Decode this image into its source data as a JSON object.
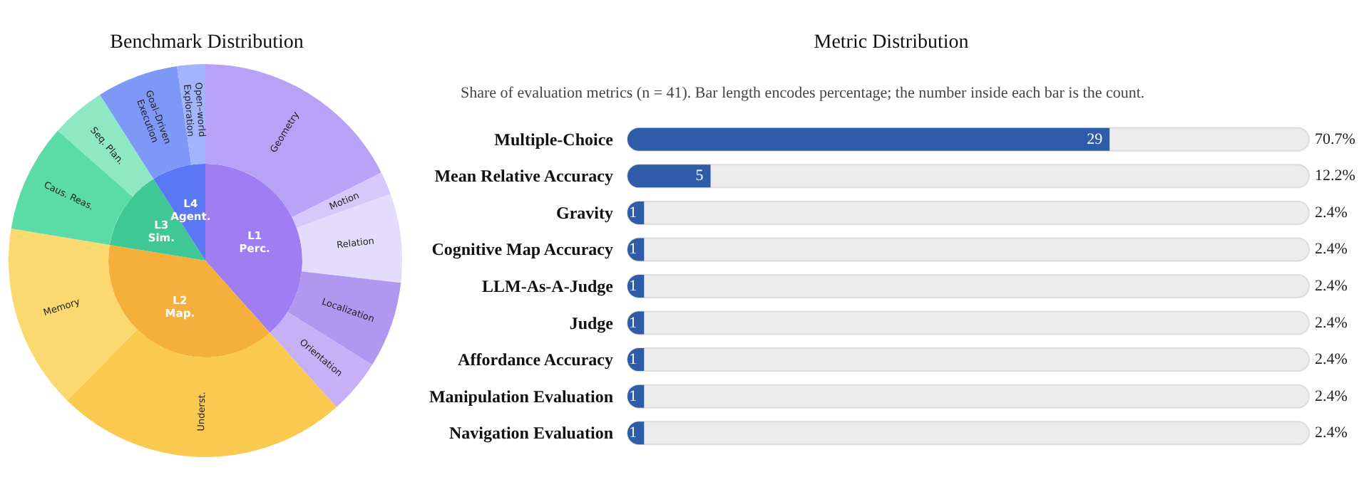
{
  "chart_data": [
    {
      "type": "pie",
      "title": "Benchmark Distribution",
      "categories": [
        "L1\nPerc.",
        "L2\nMap.",
        "L3\nSim.",
        "L4\nAgent."
      ],
      "values": [
        38.4,
        39.2,
        13.4,
        9.0
      ],
      "colors": [
        "#a07ef2",
        "#f5b03c",
        "#3fc795",
        "#5a78f5"
      ]
    },
    {
      "type": "donut",
      "categories": [
        "Geometry",
        "Motion",
        "Relation",
        "Localization",
        "Orientation",
        "Underst.",
        "Memory",
        "Caus. Reas.",
        "Seq. Plan.",
        "Goal–Driven\nExecution",
        "Open–world\nExploration"
      ],
      "values": [
        17.6,
        1.9,
        7.3,
        7.1,
        4.5,
        24.0,
        15.2,
        8.9,
        4.5,
        6.7,
        2.3
      ],
      "colors": [
        "#b8a2f8",
        "#d5c8fb",
        "#e4dcfc",
        "#b197ef",
        "#c6b0f6",
        "#fac94f",
        "#fbd870",
        "#5adba8",
        "#8ee8c4",
        "#7e98f7",
        "#a2b4fb"
      ]
    },
    {
      "type": "bar",
      "orientation": "horizontal",
      "title": "Metric Distribution",
      "subtitle": "Share of evaluation metrics (n = 41). Bar length encodes percentage; the number inside each bar is the count.",
      "categories": [
        "Multiple-Choice",
        "Mean Relative Accuracy",
        "Gravity",
        "Cognitive Map Accuracy",
        "LLM-As-A-Judge",
        "Judge",
        "Affordance Accuracy",
        "Manipulation Evaluation",
        "Navigation Evaluation"
      ],
      "values": [
        29,
        5,
        1,
        1,
        1,
        1,
        1,
        1,
        1
      ],
      "data_labels": true,
      "color": "#2f5ca8",
      "tick_labels": "y",
      "annotations": [
        "70.7%",
        "12.2%",
        "2.4%",
        "2.4%",
        "2.4%",
        "2.4%",
        "2.4%",
        "2.4%",
        "2.4%"
      ]
    }
  ]
}
